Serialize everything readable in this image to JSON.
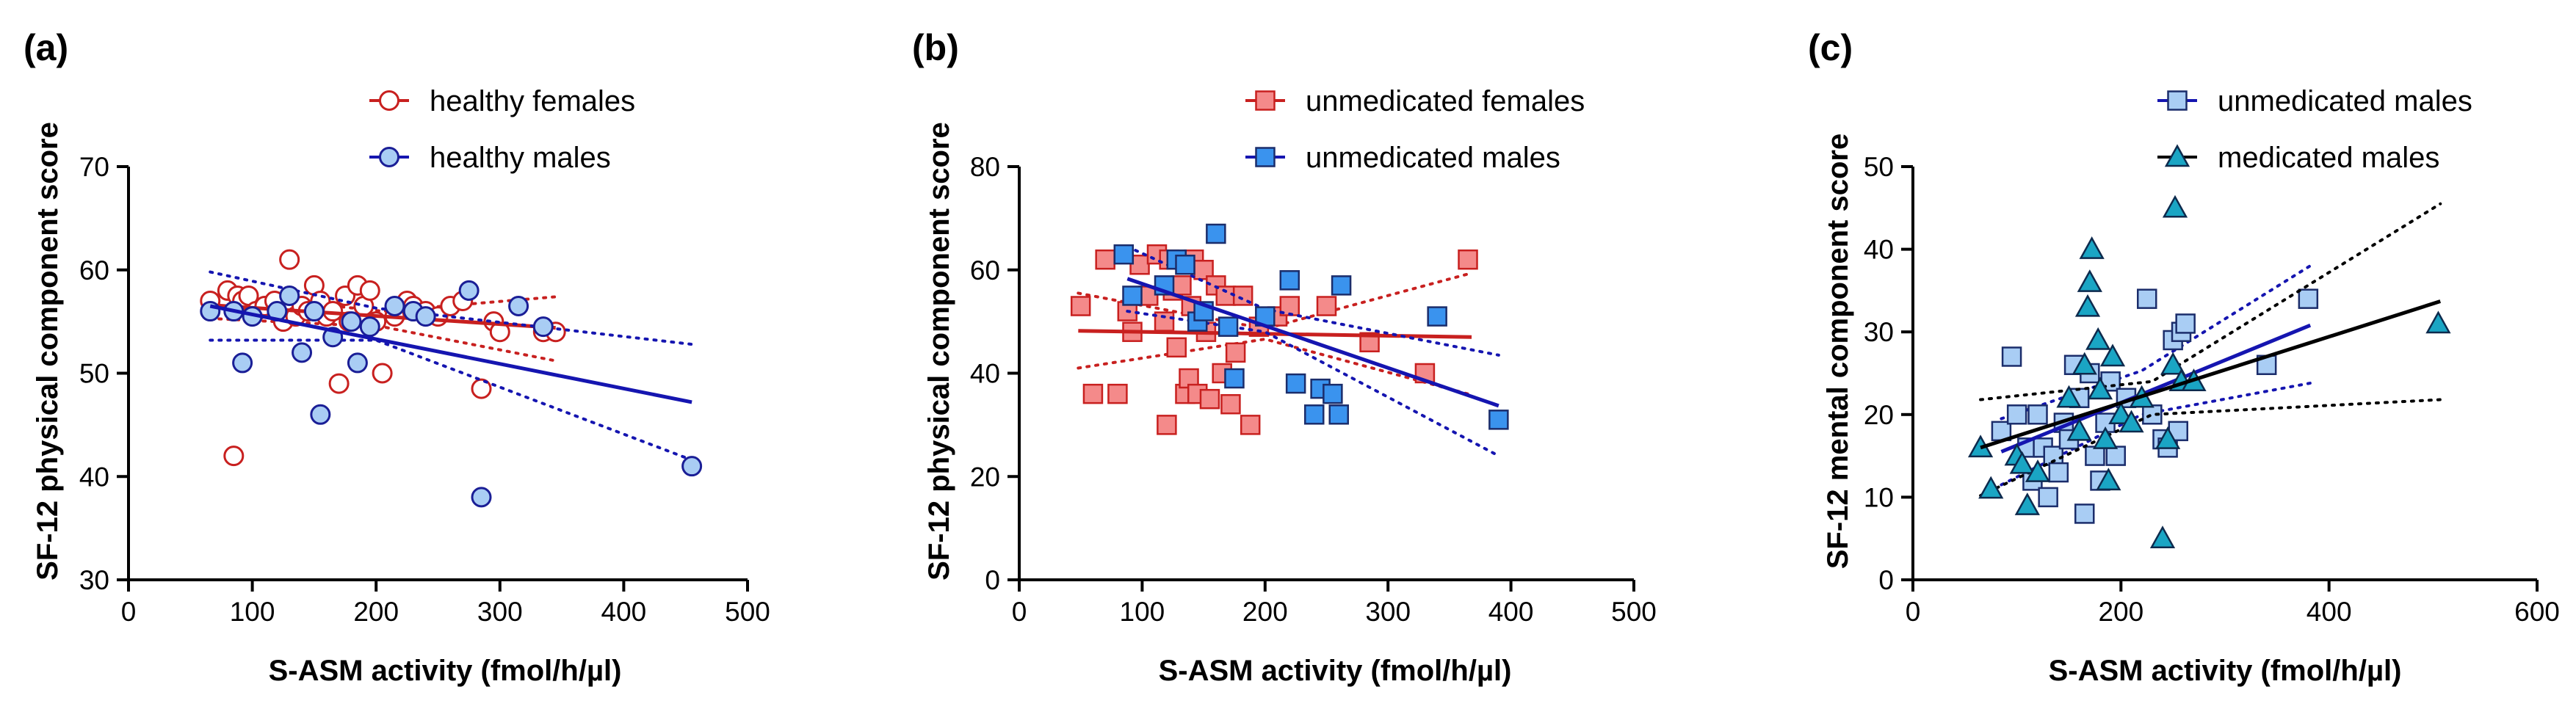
{
  "panels": [
    {
      "letter": "(a)",
      "ylabel": "SF-12 physical component score",
      "xlabel": "S-ASM activity  (fmol/h/µl)",
      "xlim": [
        0,
        500
      ],
      "ylim": [
        30,
        70
      ],
      "xticks": [
        "0",
        "100",
        "200",
        "300",
        "400",
        "500"
      ],
      "yticks": [
        "30",
        "40",
        "50",
        "60",
        "70"
      ],
      "series": [
        {
          "name": "healthy females",
          "marker": "circle",
          "fill": "#ffffff",
          "stroke": "#c8201f",
          "line": "#c8201f",
          "points": [
            [
              66,
              57
            ],
            [
              80,
              58
            ],
            [
              85,
              42
            ],
            [
              88,
              57.5
            ],
            [
              92,
              57
            ],
            [
              97,
              57.5
            ],
            [
              103,
              56
            ],
            [
              110,
              56.5
            ],
            [
              118,
              57
            ],
            [
              125,
              55
            ],
            [
              130,
              61
            ],
            [
              135,
              55.5
            ],
            [
              140,
              56.5
            ],
            [
              145,
              56
            ],
            [
              150,
              58.5
            ],
            [
              155,
              57
            ],
            [
              160,
              55.5
            ],
            [
              165,
              56
            ],
            [
              170,
              49
            ],
            [
              175,
              57.5
            ],
            [
              178,
              55
            ],
            [
              185,
              58.5
            ],
            [
              190,
              56.5
            ],
            [
              195,
              58
            ],
            [
              200,
              55
            ],
            [
              205,
              50
            ],
            [
              215,
              55.5
            ],
            [
              225,
              57
            ],
            [
              230,
              56.5
            ],
            [
              240,
              56
            ],
            [
              250,
              55.5
            ],
            [
              260,
              56.5
            ],
            [
              270,
              57
            ],
            [
              285,
              48.5
            ],
            [
              295,
              55
            ],
            [
              300,
              54
            ],
            [
              335,
              54
            ],
            [
              345,
              54
            ]
          ],
          "fit": [
            [
              66,
              56.6
            ],
            [
              345,
              54.4
            ]
          ],
          "ci_upper": [
            [
              66,
              57.8
            ],
            [
              205,
              56.0
            ],
            [
              345,
              57.4
            ]
          ],
          "ci_lower": [
            [
              66,
              55.3
            ],
            [
              205,
              54.5
            ],
            [
              345,
              51.2
            ]
          ]
        },
        {
          "name": "healthy males",
          "marker": "circle",
          "fill": "#a9cdf4",
          "stroke": "#1a1e96",
          "line": "#1515b0",
          "points": [
            [
              66,
              56
            ],
            [
              85,
              56
            ],
            [
              92,
              51
            ],
            [
              100,
              55.5
            ],
            [
              120,
              56
            ],
            [
              130,
              57.5
            ],
            [
              140,
              52
            ],
            [
              150,
              56
            ],
            [
              155,
              46
            ],
            [
              165,
              53.5
            ],
            [
              180,
              55
            ],
            [
              185,
              51
            ],
            [
              195,
              54.5
            ],
            [
              215,
              56.5
            ],
            [
              230,
              56
            ],
            [
              240,
              55.5
            ],
            [
              275,
              58
            ],
            [
              285,
              38
            ],
            [
              315,
              56.5
            ],
            [
              335,
              54.5
            ],
            [
              455,
              41
            ]
          ],
          "fit": [
            [
              66,
              56.5
            ],
            [
              455,
              47.2
            ]
          ],
          "ci_upper": [
            [
              66,
              59.8
            ],
            [
              200,
              56.3
            ],
            [
              455,
              52.8
            ]
          ],
          "ci_lower": [
            [
              66,
              53.2
            ],
            [
              200,
              53.2
            ],
            [
              455,
              41.6
            ]
          ]
        }
      ]
    },
    {
      "letter": "(b)",
      "ylabel": "SF-12 physical component score",
      "xlabel": "S-ASM activity  (fmol/h/µl)",
      "xlim": [
        0,
        500
      ],
      "ylim": [
        0,
        80
      ],
      "xticks": [
        "0",
        "100",
        "200",
        "300",
        "400",
        "500"
      ],
      "yticks": [
        "0",
        "20",
        "40",
        "60",
        "80"
      ],
      "series": [
        {
          "name": "unmedicated females",
          "marker": "square",
          "fill": "#f48a8a",
          "stroke": "#c8201f",
          "line": "#c8201f",
          "points": [
            [
              50,
              53
            ],
            [
              60,
              36
            ],
            [
              70,
              62
            ],
            [
              80,
              36
            ],
            [
              88,
              52
            ],
            [
              92,
              48
            ],
            [
              98,
              61
            ],
            [
              105,
              55
            ],
            [
              112,
              63
            ],
            [
              118,
              50
            ],
            [
              120,
              30
            ],
            [
              122,
              62
            ],
            [
              125,
              56
            ],
            [
              128,
              45
            ],
            [
              132,
              57
            ],
            [
              135,
              36
            ],
            [
              138,
              39
            ],
            [
              140,
              53
            ],
            [
              142,
              62
            ],
            [
              145,
              36
            ],
            [
              150,
              60
            ],
            [
              152,
              48
            ],
            [
              155,
              35
            ],
            [
              160,
              57
            ],
            [
              165,
              40
            ],
            [
              168,
              55
            ],
            [
              172,
              34
            ],
            [
              176,
              44
            ],
            [
              182,
              55
            ],
            [
              188,
              30
            ],
            [
              195,
              49
            ],
            [
              210,
              51
            ],
            [
              220,
              53
            ],
            [
              250,
              53
            ],
            [
              285,
              46
            ],
            [
              330,
              40
            ],
            [
              365,
              62
            ]
          ],
          "fit": [
            [
              48,
              48.2
            ],
            [
              368,
              47.0
            ]
          ],
          "ci_upper": [
            [
              48,
              55.5
            ],
            [
              200,
              48.6
            ],
            [
              368,
              59.4
            ]
          ],
          "ci_lower": [
            [
              48,
              41.0
            ],
            [
              200,
              46.6
            ],
            [
              368,
              35.8
            ]
          ]
        },
        {
          "name": "unmedicated males",
          "marker": "square",
          "fill": "#3a93ee",
          "stroke": "#1b2d6b",
          "line": "#1515b0",
          "points": [
            [
              85,
              63
            ],
            [
              92,
              55
            ],
            [
              118,
              57
            ],
            [
              128,
              62
            ],
            [
              135,
              61
            ],
            [
              145,
              50
            ],
            [
              150,
              52
            ],
            [
              160,
              67
            ],
            [
              170,
              49
            ],
            [
              175,
              39
            ],
            [
              200,
              51
            ],
            [
              220,
              58
            ],
            [
              225,
              38
            ],
            [
              240,
              32
            ],
            [
              245,
              37
            ],
            [
              255,
              36
            ],
            [
              260,
              32
            ],
            [
              262,
              57
            ],
            [
              340,
              51
            ],
            [
              390,
              31
            ]
          ],
          "fit": [
            [
              88,
              58.3
            ],
            [
              390,
              33.7
            ]
          ],
          "ci_upper": [
            [
              88,
              64.5
            ],
            [
              200,
              52.4
            ],
            [
              390,
              43.5
            ]
          ],
          "ci_lower": [
            [
              88,
              52.0
            ],
            [
              200,
              48.0
            ],
            [
              390,
              24.0
            ]
          ]
        }
      ]
    },
    {
      "letter": "(c)",
      "ylabel": "SF-12 mental component score",
      "xlabel": "S-ASM activity  (fmol/h/µl)",
      "xlim": [
        0,
        600
      ],
      "ylim": [
        0,
        50
      ],
      "xticks": [
        "0",
        "200",
        "400",
        "600"
      ],
      "yticks": [
        "0",
        "10",
        "20",
        "30",
        "40",
        "50"
      ],
      "series": [
        {
          "name": "unmedicated males",
          "marker": "square",
          "fill": "#a9cdf4",
          "stroke": "#1b2d6b",
          "line": "#1515b0",
          "points": [
            [
              85,
              18
            ],
            [
              95,
              27
            ],
            [
              100,
              20
            ],
            [
              110,
              16
            ],
            [
              115,
              12
            ],
            [
              120,
              20
            ],
            [
              125,
              16
            ],
            [
              130,
              10
            ],
            [
              135,
              15
            ],
            [
              140,
              13
            ],
            [
              145,
              19
            ],
            [
              150,
              17
            ],
            [
              155,
              26
            ],
            [
              160,
              22
            ],
            [
              165,
              8
            ],
            [
              170,
              25
            ],
            [
              175,
              15
            ],
            [
              180,
              12
            ],
            [
              185,
              19
            ],
            [
              190,
              24
            ],
            [
              195,
              15
            ],
            [
              205,
              22
            ],
            [
              225,
              34
            ],
            [
              230,
              20
            ],
            [
              240,
              17
            ],
            [
              245,
              16
            ],
            [
              250,
              29
            ],
            [
              255,
              18
            ],
            [
              258,
              30
            ],
            [
              262,
              31
            ],
            [
              340,
              26
            ],
            [
              380,
              34
            ]
          ],
          "fit": [
            [
              85,
              15.5
            ],
            [
              382,
              30.8
            ]
          ],
          "ci_upper": [
            [
              85,
              19.5
            ],
            [
              220,
              25.3
            ],
            [
              382,
              38.0
            ]
          ],
          "ci_lower": [
            [
              85,
              11.5
            ],
            [
              220,
              20.0
            ],
            [
              382,
              23.8
            ]
          ]
        },
        {
          "name": "medicated males",
          "marker": "triangle",
          "fill": "#1aa5c4",
          "stroke": "#0d2a4d",
          "line": "#000000",
          "points": [
            [
              65,
              16
            ],
            [
              75,
              11
            ],
            [
              100,
              15
            ],
            [
              105,
              14
            ],
            [
              110,
              9
            ],
            [
              120,
              13
            ],
            [
              150,
              22
            ],
            [
              160,
              18
            ],
            [
              165,
              26
            ],
            [
              168,
              33
            ],
            [
              170,
              36
            ],
            [
              172,
              40
            ],
            [
              178,
              29
            ],
            [
              180,
              23
            ],
            [
              185,
              17
            ],
            [
              188,
              12
            ],
            [
              192,
              27
            ],
            [
              200,
              20
            ],
            [
              210,
              19
            ],
            [
              220,
              22
            ],
            [
              240,
              5
            ],
            [
              245,
              17
            ],
            [
              250,
              26
            ],
            [
              252,
              45
            ],
            [
              258,
              24
            ],
            [
              270,
              24
            ],
            [
              505,
              31
            ]
          ],
          "fit": [
            [
              65,
              16.0
            ],
            [
              507,
              33.7
            ]
          ],
          "ci_upper": [
            [
              65,
              21.8
            ],
            [
              230,
              24.0
            ],
            [
              507,
              45.5
            ]
          ],
          "ci_lower": [
            [
              65,
              10.2
            ],
            [
              230,
              20.0
            ],
            [
              507,
              21.8
            ]
          ]
        }
      ]
    }
  ]
}
